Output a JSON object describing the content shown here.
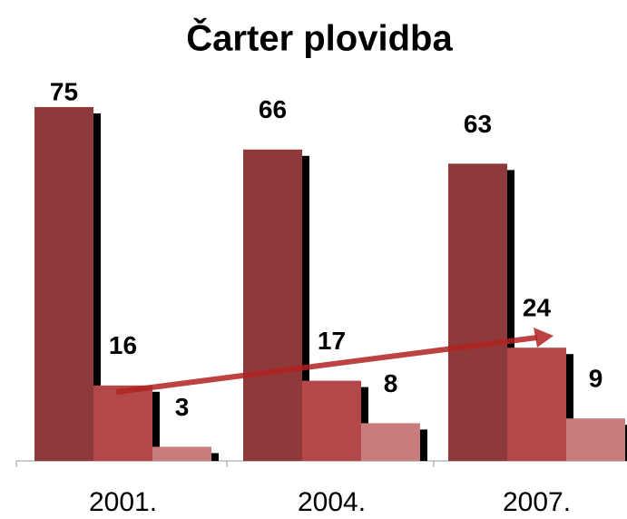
{
  "chart_data": {
    "type": "bar",
    "title": "Čarter plovidba",
    "categories": [
      "2001.",
      "2004.",
      "2007."
    ],
    "series": [
      {
        "color": "#8e3a3a",
        "values": [
          75,
          66,
          63
        ]
      },
      {
        "color": "#b24848",
        "values": [
          16,
          17,
          24
        ]
      },
      {
        "color": "#c87c7c",
        "values": [
          3,
          8,
          9
        ]
      }
    ]
  }
}
